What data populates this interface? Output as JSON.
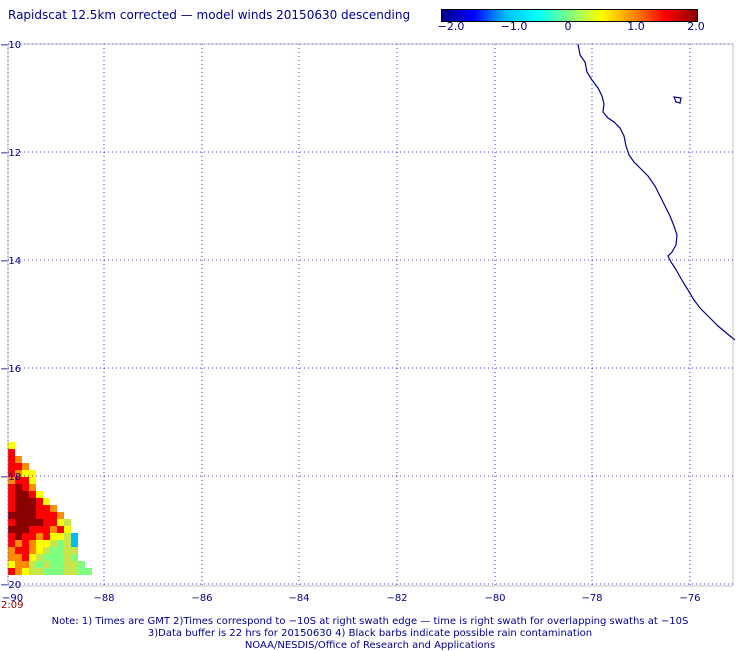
{
  "title": "Rapidscat 12.5km corrected — model winds 20150630 descending",
  "colorbar": {
    "labels": [
      "−2.0",
      "−1.0",
      "0",
      "1.0",
      "2.0"
    ],
    "values": [
      -2.0,
      -1.0,
      0,
      1.0,
      2.0
    ],
    "colors": [
      "#00008b",
      "#0000ff",
      "#00bfff",
      "#00ffff",
      "#7fff7f",
      "#ffff00",
      "#ff8c00",
      "#ff0000",
      "#8b0000"
    ]
  },
  "map": {
    "lat_labels": [
      "−10",
      "−12",
      "−14",
      "−16",
      "−18",
      "−20"
    ],
    "lon_labels": [
      "−90",
      "−88",
      "−86",
      "−84",
      "−82",
      "−80",
      "−78",
      "−76"
    ],
    "coastline_color": "#00008b",
    "grid_color": "#0000cd"
  },
  "timestamp": "2:09",
  "notes": [
    "Note: 1) Times are GMT 2)Times correspond to −10S at right swath edge — time is right swath for overlapping swaths at −10S",
    "3)Data buffer is 22 hrs for 20150630 4) Black barbs indicate possible rain contamination",
    "NOAA/NESDIS/Office of Research and Applications"
  ]
}
